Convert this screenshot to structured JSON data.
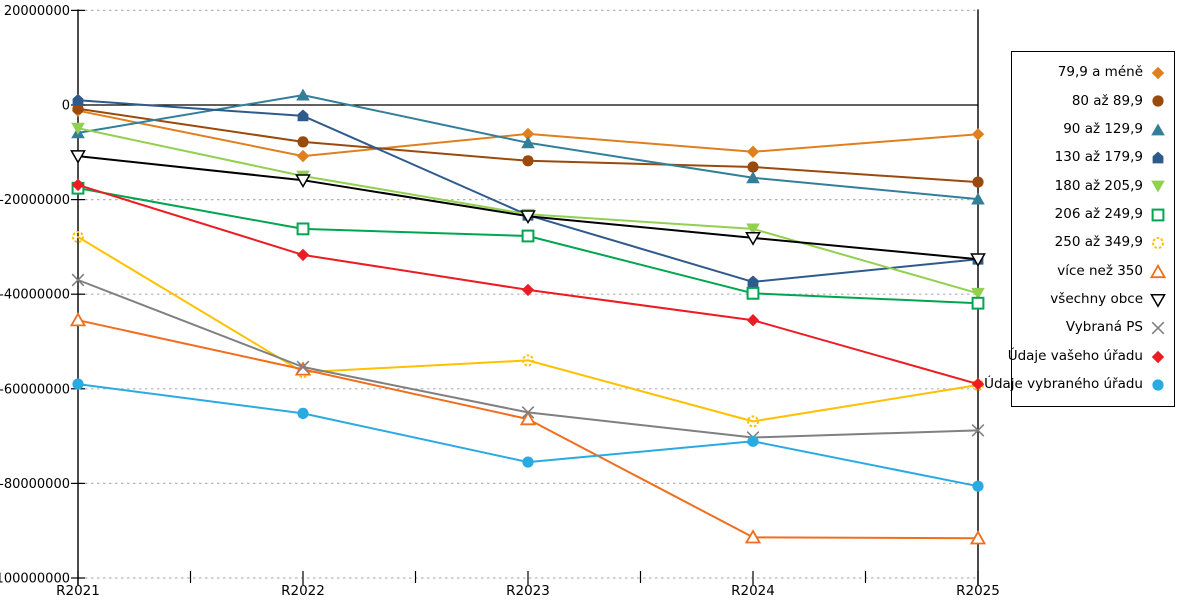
{
  "chart_data": {
    "type": "line",
    "title": "",
    "xlabel": "",
    "ylabel": "",
    "categories": [
      "R2021",
      "R2022",
      "R2023",
      "R2024",
      "R2025"
    ],
    "ylim": [
      -100000000,
      20000000
    ],
    "y_ticks": {
      "labels": [
        "20000000",
        "0",
        "-20000000",
        "-40000000",
        "-60000000",
        "-80000000",
        "-100000000"
      ],
      "values": [
        20000000,
        0,
        -20000000,
        -40000000,
        -60000000,
        -80000000,
        -100000000
      ]
    },
    "grid": "horizontal-dashed",
    "legend_position": "right",
    "colors": {
      "background": "#FFFFFF",
      "axis": "#000000",
      "gridline": "#B3B3B3"
    },
    "series": [
      {
        "name": "79,9 a méně",
        "color": "#DF7F1E",
        "marker": "diamond",
        "values": [
          -1200000,
          -10800000,
          -6100000,
          -9900000,
          -6200000
        ]
      },
      {
        "name": "80 až 89,9",
        "color": "#9A4A0D",
        "marker": "circle",
        "values": [
          -800000,
          -7800000,
          -11800000,
          -13100000,
          -16300000
        ]
      },
      {
        "name": "90 až 129,9",
        "color": "#337F99",
        "marker": "triangle-up",
        "values": [
          -5900000,
          2100000,
          -8000000,
          -15400000,
          -19900000
        ]
      },
      {
        "name": "130 až 179,9",
        "color": "#2F5B8C",
        "marker": "pentagon",
        "values": [
          1000000,
          -2300000,
          -23300000,
          -37400000,
          -32600000
        ]
      },
      {
        "name": "180 až 205,9",
        "color": "#92D050",
        "marker": "triangle-down",
        "values": [
          -4900000,
          -15000000,
          -23100000,
          -26200000,
          -39800000
        ]
      },
      {
        "name": "206 až 249,9",
        "color": "#00A550",
        "marker": "square-open",
        "values": [
          -17600000,
          -26200000,
          -27700000,
          -39800000,
          -41900000
        ]
      },
      {
        "name": "250 až 349,9",
        "color": "#FFC000",
        "marker": "circle-open-dashed",
        "values": [
          -27900000,
          -56500000,
          -54000000,
          -66900000,
          -59200000
        ]
      },
      {
        "name": "více než 350",
        "color": "#F06E1E",
        "marker": "triangle-up-open",
        "values": [
          -45500000,
          -55900000,
          -66400000,
          -91400000,
          -91600000
        ]
      },
      {
        "name": "všechny obce",
        "color": "#000000",
        "marker": "triangle-down-open",
        "values": [
          -10800000,
          -15900000,
          -23500000,
          -28100000,
          -32600000
        ]
      },
      {
        "name": "Vybraná PS",
        "color": "#808080",
        "marker": "x-cross",
        "values": [
          -37000000,
          -55400000,
          -65000000,
          -70300000,
          -68800000
        ]
      },
      {
        "name": "Údaje vašeho úřadu",
        "color": "#EC1C24",
        "marker": "diamond",
        "values": [
          -16900000,
          -31700000,
          -39100000,
          -45500000,
          -59000000
        ]
      },
      {
        "name": "Údaje vybraného úřadu",
        "color": "#29ABE2",
        "marker": "circle",
        "values": [
          -59000000,
          -65200000,
          -75500000,
          -71100000,
          -80600000
        ]
      }
    ]
  }
}
